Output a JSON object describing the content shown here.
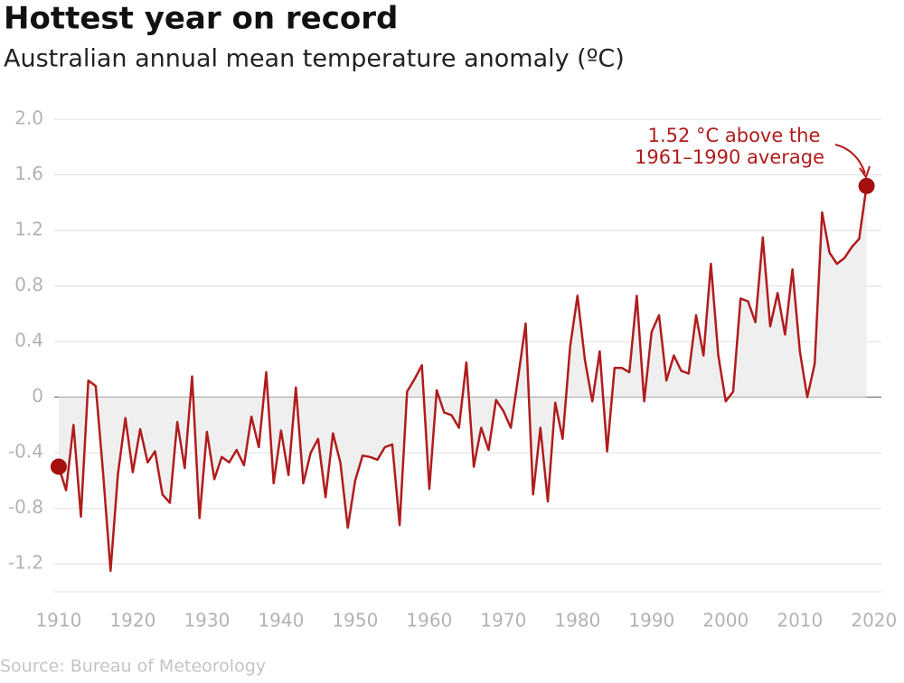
{
  "chart_data": {
    "type": "line",
    "title": "Hottest year on record",
    "subtitle": "Australian annual mean temperature anomaly (ºC)",
    "annotation": [
      "1.52 °C above the",
      "1961–1990 average"
    ],
    "source": "Source: Bureau of Meteorology",
    "x": [
      1910,
      1911,
      1912,
      1913,
      1914,
      1915,
      1916,
      1917,
      1918,
      1919,
      1920,
      1921,
      1922,
      1923,
      1924,
      1925,
      1926,
      1927,
      1928,
      1929,
      1930,
      1931,
      1932,
      1933,
      1934,
      1935,
      1936,
      1937,
      1938,
      1939,
      1940,
      1941,
      1942,
      1943,
      1944,
      1945,
      1946,
      1947,
      1948,
      1949,
      1950,
      1951,
      1952,
      1953,
      1954,
      1955,
      1956,
      1957,
      1958,
      1959,
      1960,
      1961,
      1962,
      1963,
      1964,
      1965,
      1966,
      1967,
      1968,
      1969,
      1970,
      1971,
      1972,
      1973,
      1974,
      1975,
      1976,
      1977,
      1978,
      1979,
      1980,
      1981,
      1982,
      1983,
      1984,
      1985,
      1986,
      1987,
      1988,
      1989,
      1990,
      1991,
      1992,
      1993,
      1994,
      1995,
      1996,
      1997,
      1998,
      1999,
      2000,
      2001,
      2002,
      2003,
      2004,
      2005,
      2006,
      2007,
      2008,
      2009,
      2010,
      2011,
      2012,
      2013,
      2014,
      2015,
      2016,
      2017,
      2018,
      2019
    ],
    "series": [
      {
        "color": "#b01c1c",
        "fill": "#efefef",
        "values": [
          -0.5,
          -0.67,
          -0.2,
          -0.86,
          0.12,
          0.08,
          -0.55,
          -1.25,
          -0.55,
          -0.15,
          -0.54,
          -0.23,
          -0.47,
          -0.39,
          -0.7,
          -0.76,
          -0.18,
          -0.51,
          0.15,
          -0.87,
          -0.25,
          -0.59,
          -0.43,
          -0.47,
          -0.38,
          -0.49,
          -0.14,
          -0.36,
          0.18,
          -0.62,
          -0.24,
          -0.56,
          0.07,
          -0.62,
          -0.4,
          -0.3,
          -0.72,
          -0.26,
          -0.47,
          -0.94,
          -0.6,
          -0.42,
          -0.43,
          -0.45,
          -0.36,
          -0.34,
          -0.92,
          0.04,
          0.13,
          0.23,
          -0.66,
          0.05,
          -0.11,
          -0.13,
          -0.22,
          0.25,
          -0.5,
          -0.22,
          -0.38,
          -0.02,
          -0.1,
          -0.22,
          0.15,
          0.53,
          -0.7,
          -0.22,
          -0.75,
          -0.04,
          -0.3,
          0.36,
          0.73,
          0.27,
          -0.03,
          0.33,
          -0.39,
          0.21,
          0.21,
          0.18,
          0.73,
          -0.03,
          0.47,
          0.59,
          0.12,
          0.3,
          0.19,
          0.17,
          0.59,
          0.3,
          0.96,
          0.3,
          -0.03,
          0.04,
          0.71,
          0.69,
          0.54,
          1.15,
          0.51,
          0.75,
          0.45,
          0.92,
          0.33,
          0.0,
          0.24,
          1.33,
          1.04,
          0.96,
          1.0,
          1.08,
          1.14,
          1.52
        ]
      }
    ],
    "xlim": [
      1909.4,
      2021
    ],
    "xticks": [
      1910,
      1920,
      1930,
      1940,
      1950,
      1960,
      1970,
      1980,
      1990,
      2000,
      2010,
      2020
    ],
    "ylim": [
      -1.4,
      2.0
    ],
    "yticks": [
      {
        "value": 2,
        "label": "2.0"
      },
      1.6,
      1.2,
      0.8,
      0.4,
      0,
      -0.4,
      -0.8,
      -1.2
    ],
    "grid": true
  }
}
